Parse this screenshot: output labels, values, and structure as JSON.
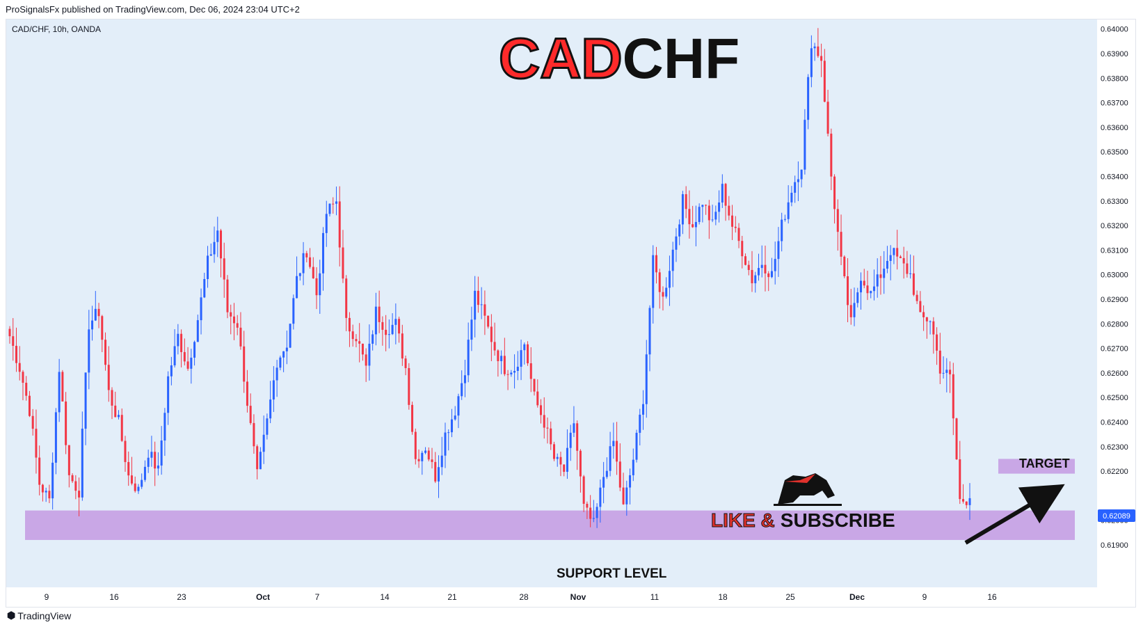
{
  "header": {
    "publisher_line": "ProSignalsFx published on TradingView.com, Dec 06, 2024 23:04 UTC+2"
  },
  "footer": {
    "brand": "TradingView"
  },
  "colors": {
    "bull": "#2962ff",
    "bear": "#f23645",
    "plot_bg": "#e3eef9",
    "zone": "#c9a7e6",
    "price_tag": "#2962ff",
    "title_red": "#ff2a2a",
    "title_black": "#111111"
  },
  "chart_data": {
    "type": "candlestick",
    "symbol_line": "CAD/CHF, 10h, OANDA",
    "title_red": "CAD",
    "title_black": "CHF",
    "current_price": "0.62089",
    "ylim": [
      0.6185,
      0.64
    ],
    "y_ticks": [
      "0.64000",
      "0.63900",
      "0.63800",
      "0.63700",
      "0.63600",
      "0.63500",
      "0.63400",
      "0.63300",
      "0.63200",
      "0.63100",
      "0.63000",
      "0.62900",
      "0.62800",
      "0.62700",
      "0.62600",
      "0.62500",
      "0.62400",
      "0.62300",
      "0.62200",
      "0.62000",
      "0.61900"
    ],
    "x_ticks": [
      {
        "label": "9",
        "bold": false
      },
      {
        "label": "16",
        "bold": false
      },
      {
        "label": "23",
        "bold": false
      },
      {
        "label": "Oct",
        "bold": true
      },
      {
        "label": "7",
        "bold": false
      },
      {
        "label": "14",
        "bold": false
      },
      {
        "label": "21",
        "bold": false
      },
      {
        "label": "28",
        "bold": false
      },
      {
        "label": "Nov",
        "bold": true
      },
      {
        "label": "11",
        "bold": false
      },
      {
        "label": "18",
        "bold": false
      },
      {
        "label": "25",
        "bold": false
      },
      {
        "label": "Dec",
        "bold": true
      },
      {
        "label": "9",
        "bold": false
      },
      {
        "label": "16",
        "bold": false
      }
    ],
    "support_zone": {
      "low": 0.6192,
      "high": 0.6204,
      "label": "SUPPORT LEVEL"
    },
    "target_zone": {
      "low": 0.6219,
      "high": 0.6225,
      "label": "TARGET"
    },
    "promo": {
      "like": "LIKE &",
      "subscribe": "SUBSCRIBE"
    },
    "pivots": [
      0.6275,
      0.6262,
      0.6245,
      0.6215,
      0.6208,
      0.6262,
      0.6218,
      0.6212,
      0.628,
      0.6285,
      0.6252,
      0.624,
      0.6218,
      0.6212,
      0.6228,
      0.622,
      0.6258,
      0.6275,
      0.6262,
      0.6282,
      0.6305,
      0.6318,
      0.6285,
      0.628,
      0.6248,
      0.6218,
      0.624,
      0.6265,
      0.6272,
      0.6298,
      0.631,
      0.6292,
      0.6325,
      0.633,
      0.628,
      0.6275,
      0.6262,
      0.6285,
      0.6278,
      0.628,
      0.6262,
      0.6225,
      0.623,
      0.6218,
      0.6235,
      0.6245,
      0.6262,
      0.6292,
      0.6282,
      0.627,
      0.6262,
      0.6262,
      0.6272,
      0.625,
      0.624,
      0.6225,
      0.622,
      0.624,
      0.6205,
      0.6198,
      0.6218,
      0.6232,
      0.6205,
      0.6225,
      0.625,
      0.6305,
      0.629,
      0.631,
      0.633,
      0.632,
      0.633,
      0.632,
      0.6335,
      0.632,
      0.631,
      0.6298,
      0.6305,
      0.63,
      0.632,
      0.6335,
      0.6345,
      0.6395,
      0.6388,
      0.634,
      0.6305,
      0.628,
      0.63,
      0.6292,
      0.63,
      0.631,
      0.6305,
      0.63,
      0.6282,
      0.6282,
      0.6262,
      0.6258,
      0.6208,
      0.6209
    ]
  }
}
